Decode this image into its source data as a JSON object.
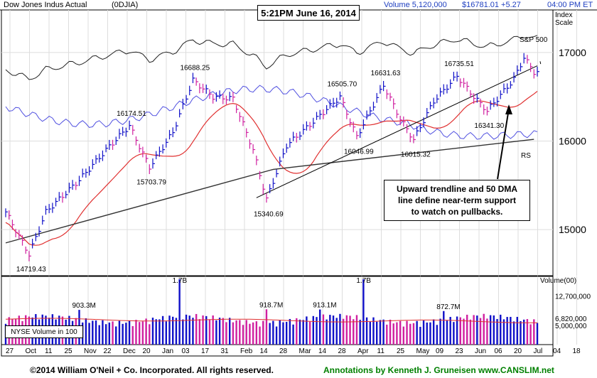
{
  "header": {
    "name": "Dow Jones Indus Actual",
    "symbol": "(0DJIA)",
    "volume": "Volume 5,120,000",
    "price": "$16781.01 +5.27",
    "time": "04:00 PM ET",
    "timestamp_box": "5:21PM June 16, 2014"
  },
  "scale_label_1": "Index",
  "scale_label_2": "Scale",
  "annotation": {
    "line1": "Upward trendline and 50 DMA",
    "line2": "line define near-term support",
    "line3": "to watch on pullbacks."
  },
  "volume_box": "NYSE Volume in 100",
  "footer": {
    "copyright": "©2014 William O'Neil + Co. Incorporated. All rights reserved.",
    "credit": "Annotations by Kenneth J. Gruneisen www.CANSLIM.net"
  },
  "colors": {
    "up": "#1010c8",
    "down": "#d020a0",
    "ma50": "#e03030",
    "ma200": "#333333",
    "rs": "#5050e0",
    "sp500": "#222222",
    "header_blue": "#2040c0",
    "footer_green": "#008000",
    "grid": "#dddddd"
  },
  "chart_data": {
    "type": "line",
    "price_axis": {
      "ticks": [
        15000,
        16000,
        17000
      ],
      "ylim": [
        14480,
        17480
      ]
    },
    "x_ticks": [
      "27",
      "Oct",
      "11",
      "25",
      "Nov",
      "22",
      "Dec",
      "20",
      "Jan",
      "03",
      "17",
      "31",
      "Feb",
      "14",
      "28",
      "Mar",
      "14",
      "28",
      "Apr",
      "11",
      "25",
      "May",
      "09",
      "23",
      "Jun",
      "06",
      "20",
      "Jul",
      "04",
      "18"
    ],
    "price_labels": [
      {
        "label": "14719.43",
        "date_index": 7,
        "value": 14719.43,
        "pos": "below"
      },
      {
        "label": "16174.51",
        "date_index": 37,
        "value": 16174.51,
        "pos": "above"
      },
      {
        "label": "15703.79",
        "date_index": 43,
        "value": 15703.79,
        "pos": "below"
      },
      {
        "label": "16688.25",
        "date_index": 56,
        "value": 16688.25,
        "pos": "above"
      },
      {
        "label": "15340.69",
        "date_index": 78,
        "value": 15340.69,
        "pos": "below"
      },
      {
        "label": "16505.70",
        "date_index": 100,
        "value": 16505.7,
        "pos": "above"
      },
      {
        "label": "16046.99",
        "date_index": 105,
        "value": 16046.99,
        "pos": "below"
      },
      {
        "label": "16631.63",
        "date_index": 113,
        "value": 16631.63,
        "pos": "above"
      },
      {
        "label": "16015.32",
        "date_index": 122,
        "value": 16015.32,
        "pos": "below"
      },
      {
        "label": "16735.51",
        "date_index": 135,
        "value": 16735.51,
        "pos": "above"
      },
      {
        "label": "16341.30",
        "date_index": 144,
        "value": 16341.3,
        "pos": "below"
      }
    ],
    "series_labels": [
      "S&P 500",
      "RS"
    ],
    "volume_axis": {
      "label": "Volume(00)",
      "ticks": [
        "12,700,000",
        "6,820,000",
        "5,000,000"
      ]
    },
    "volume_labels": [
      "1.7B",
      "903.3M",
      "918.7M",
      "913.1M",
      "1.7B",
      "872.7M"
    ],
    "volume_peaks": [
      {
        "label": "1.7B",
        "date_index": 52,
        "value": 17000000
      },
      {
        "label": "903.3M",
        "date_index": 22,
        "value": 9033000
      },
      {
        "label": "918.7M",
        "date_index": 78,
        "value": 9187000
      },
      {
        "label": "913.1M",
        "date_index": 94,
        "value": 9131000
      },
      {
        "label": "1.7B",
        "date_index": 107,
        "value": 17000000
      },
      {
        "label": "872.7M",
        "date_index": 131,
        "value": 8727000
      }
    ],
    "ohlc_keypoints": [
      [
        0,
        15200
      ],
      [
        7,
        14719
      ],
      [
        12,
        15200
      ],
      [
        22,
        15560
      ],
      [
        30,
        15900
      ],
      [
        37,
        16174
      ],
      [
        43,
        15704
      ],
      [
        50,
        16100
      ],
      [
        56,
        16688
      ],
      [
        62,
        16500
      ],
      [
        68,
        16480
      ],
      [
        74,
        15900
      ],
      [
        78,
        15341
      ],
      [
        84,
        15950
      ],
      [
        90,
        16150
      ],
      [
        100,
        16500
      ],
      [
        105,
        16047
      ],
      [
        113,
        16631
      ],
      [
        118,
        16250
      ],
      [
        122,
        16015
      ],
      [
        128,
        16450
      ],
      [
        135,
        16735
      ],
      [
        140,
        16500
      ],
      [
        144,
        16341
      ],
      [
        152,
        16700
      ],
      [
        155,
        16945
      ],
      [
        158,
        16781
      ]
    ]
  }
}
